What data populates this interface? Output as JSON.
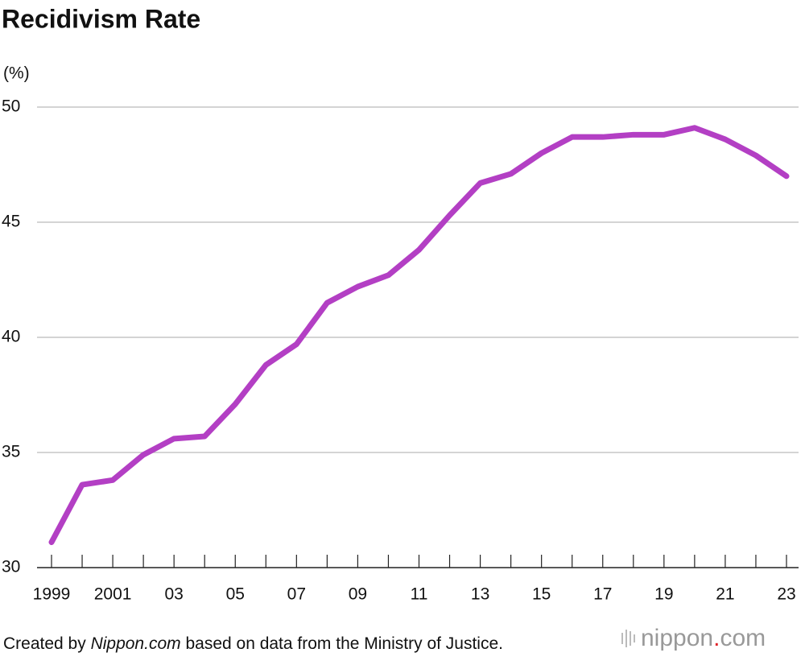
{
  "chart_data": {
    "type": "line",
    "title": "Recidivism Rate",
    "y_label": "(%)",
    "x": [
      1999,
      2000,
      2001,
      2002,
      2003,
      2004,
      2005,
      2006,
      2007,
      2008,
      2009,
      2010,
      2011,
      2012,
      2013,
      2014,
      2015,
      2016,
      2017,
      2018,
      2019,
      2020,
      2021,
      2022,
      2023
    ],
    "series": [
      {
        "name": "Recidivism rate",
        "color": "#b33fc4",
        "values": [
          31.1,
          33.6,
          33.8,
          34.9,
          35.6,
          35.7,
          37.1,
          38.8,
          39.7,
          41.5,
          42.2,
          42.7,
          43.8,
          45.3,
          46.7,
          47.1,
          48.0,
          48.7,
          48.7,
          48.8,
          48.8,
          49.1,
          48.6,
          47.9,
          47.0
        ]
      }
    ],
    "xlim": [
      1999,
      2023
    ],
    "xticks": [
      1999,
      2001,
      {
        "value": 2003,
        "label": "03"
      },
      {
        "value": 2005,
        "label": "05"
      },
      {
        "value": 2007,
        "label": "07"
      },
      {
        "value": 2009,
        "label": "09"
      },
      {
        "value": 2011,
        "label": "11"
      },
      {
        "value": 2013,
        "label": "13"
      },
      {
        "value": 2015,
        "label": "15"
      },
      {
        "value": 2017,
        "label": "17"
      },
      {
        "value": 2019,
        "label": "19"
      },
      {
        "value": 2021,
        "label": "21"
      },
      {
        "value": 2023,
        "label": "23"
      }
    ],
    "xminorticks": [
      2000,
      2002,
      2004,
      2006,
      2008,
      2010,
      2012,
      2014,
      2016,
      2018,
      2020,
      2022
    ],
    "ylim": [
      30,
      50
    ],
    "yticks": [
      30,
      35,
      40,
      45,
      50
    ],
    "grid": true,
    "source": {
      "before": "Created by ",
      "italic": "Nippon.com",
      "after": " based on data from the Ministry of Justice."
    },
    "logo": {
      "name": "nippon",
      "dot": ".",
      "suffix": "com"
    }
  }
}
